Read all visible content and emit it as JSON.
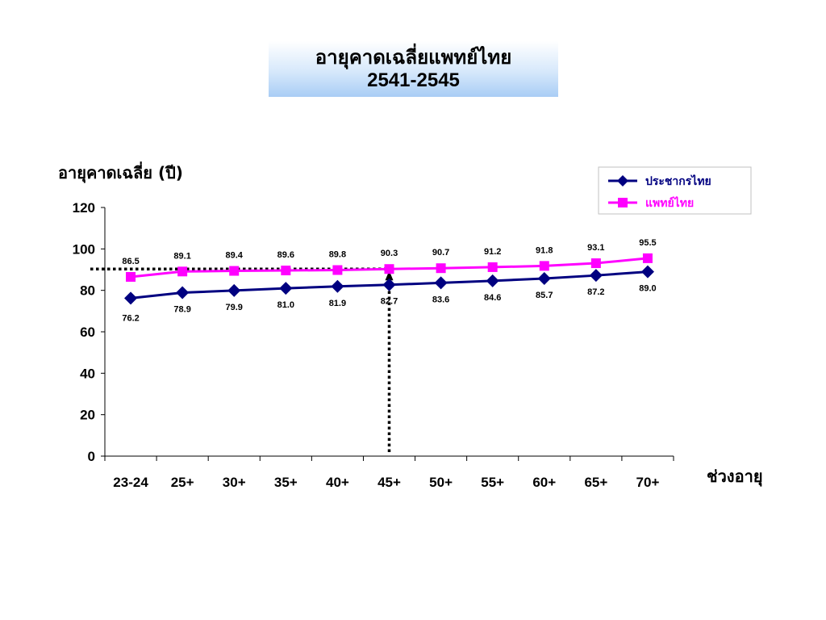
{
  "title": {
    "line1": "อายุคาดเฉลี่ยแพทย์ไทย",
    "line2": "2541-2545"
  },
  "chart_data": {
    "type": "line",
    "ylabel": "อายุคาดเฉลี่ย (ปี)",
    "xlabel": "ช่วงอายุ",
    "ylim": [
      0,
      120
    ],
    "yticks": [
      "0",
      "20",
      "40",
      "60",
      "80",
      "100",
      "120"
    ],
    "categories": [
      "23-24",
      "25+",
      "30+",
      "35+",
      "40+",
      "45+",
      "50+",
      "55+",
      "60+",
      "65+",
      "70+"
    ],
    "series": [
      {
        "name": "ประชากรไทย",
        "color": "#000080",
        "marker": "diamond",
        "values": [
          76.2,
          78.9,
          79.9,
          81.0,
          81.9,
          82.7,
          83.6,
          84.6,
          85.7,
          87.2,
          89.0
        ],
        "labels": [
          "76.2",
          "78.9",
          "79.9",
          "81.0",
          "81.9",
          "82.7",
          "83.6",
          "84.6",
          "85.7",
          "87.2",
          "89.0"
        ]
      },
      {
        "name": "แพทย์ไทย",
        "color": "#ff00ff",
        "marker": "square",
        "values": [
          86.5,
          89.1,
          89.4,
          89.6,
          89.8,
          90.3,
          90.7,
          91.2,
          91.8,
          93.1,
          95.5
        ],
        "labels": [
          "86.5",
          "89.1",
          "89.4",
          "89.6",
          "89.8",
          "90.3",
          "90.7",
          "91.2",
          "91.8",
          "93.1",
          "95.5"
        ]
      }
    ],
    "reference_lines": {
      "horizontal_value": 90.3,
      "vertical_category": "45+",
      "style": "dotted"
    },
    "legend": "top-right",
    "grid": false
  }
}
